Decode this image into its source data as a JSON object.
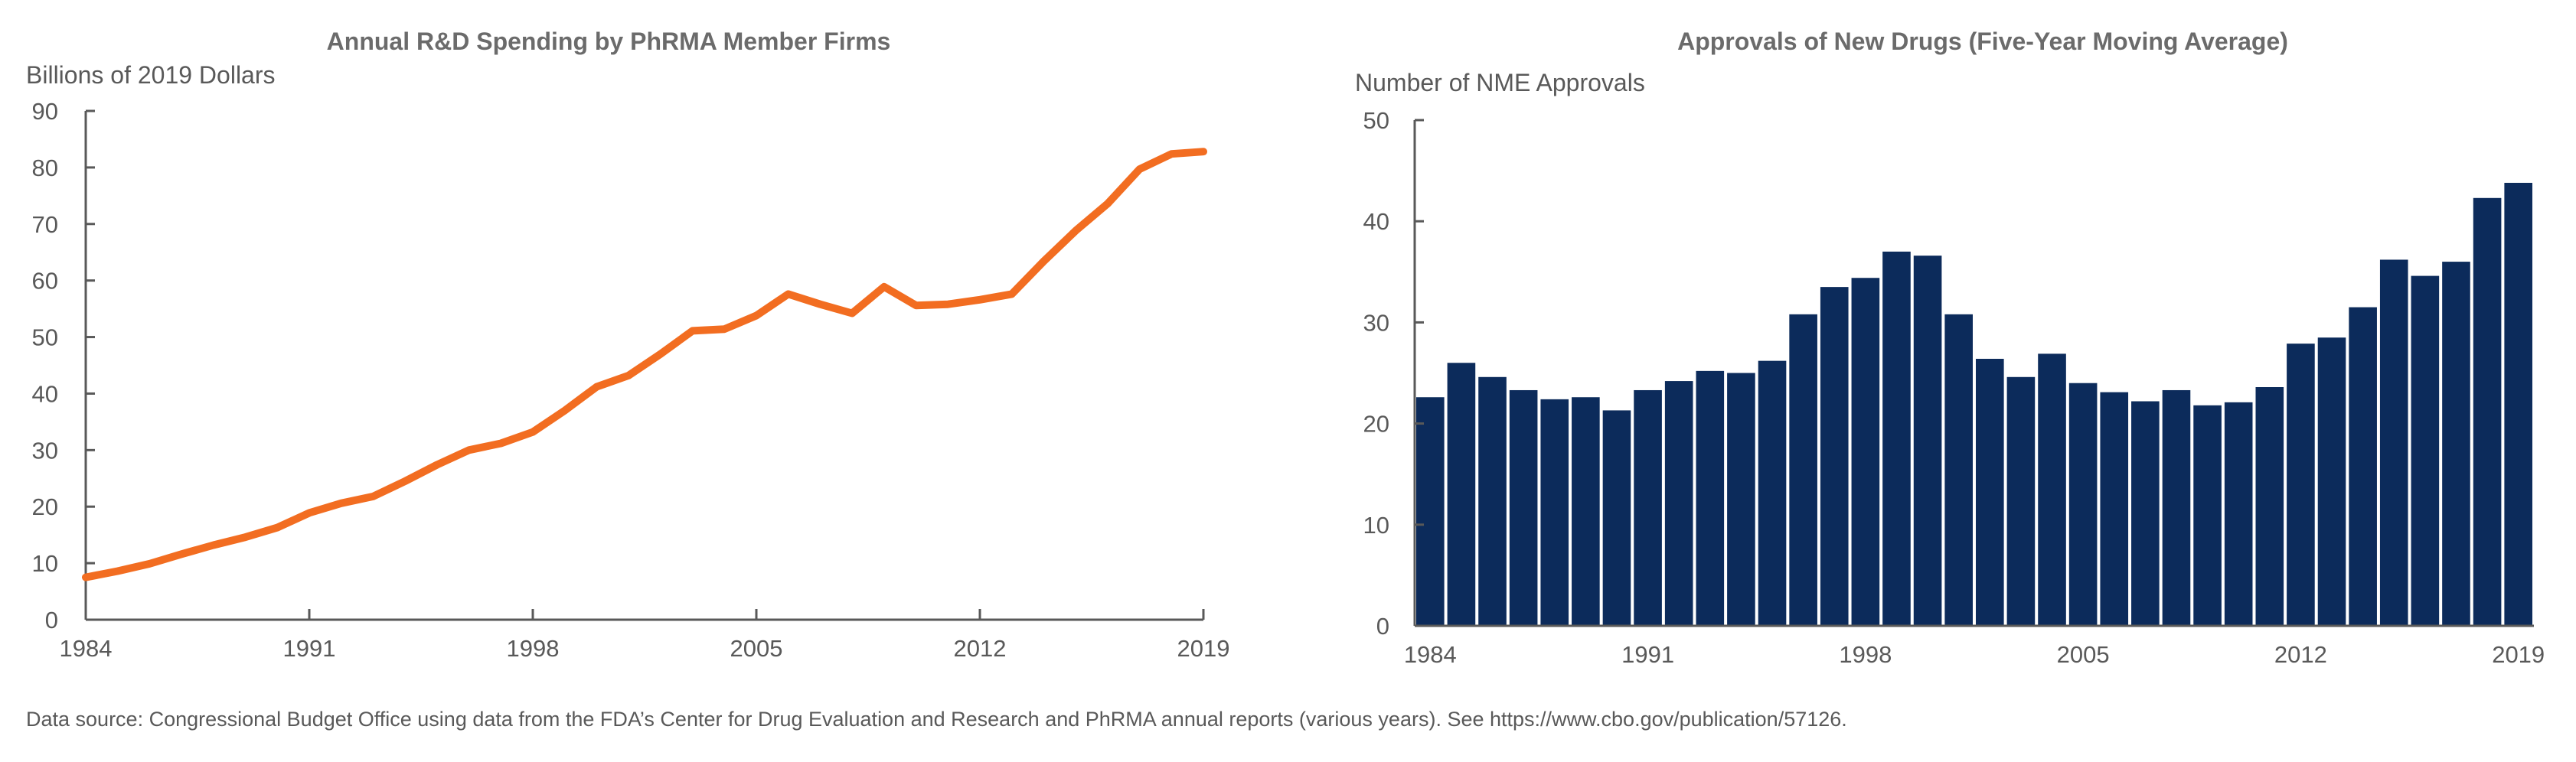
{
  "chart_data": [
    {
      "type": "line",
      "title": "Annual R&D Spending by PhRMA Member Firms",
      "ylabel": "Billions of 2019 Dollars",
      "xlabel": "",
      "ylim": [
        0,
        90
      ],
      "yticks": [
        0,
        10,
        20,
        30,
        40,
        50,
        60,
        70,
        80,
        90
      ],
      "xlim": [
        1984,
        2019
      ],
      "xticks": [
        1984,
        1991,
        1998,
        2005,
        2012,
        2019
      ],
      "color": "#f26d21",
      "x": [
        1984,
        1985,
        1986,
        1987,
        1988,
        1989,
        1990,
        1991,
        1992,
        1993,
        1994,
        1995,
        1996,
        1997,
        1998,
        1999,
        2000,
        2001,
        2002,
        2003,
        2004,
        2005,
        2006,
        2007,
        2008,
        2009,
        2010,
        2011,
        2012,
        2013,
        2014,
        2015,
        2016,
        2017,
        2018,
        2019
      ],
      "values": [
        7.5,
        8.6,
        9.9,
        11.6,
        13.2,
        14.6,
        16.3,
        18.9,
        20.6,
        21.8,
        24.5,
        27.4,
        30.0,
        31.2,
        33.2,
        37.0,
        41.2,
        43.2,
        47.0,
        51.1,
        51.4,
        53.8,
        57.6,
        55.8,
        54.2,
        58.9,
        55.6,
        55.8,
        56.6,
        57.6,
        63.4,
        68.8,
        73.6,
        79.7,
        82.4,
        82.8
      ]
    },
    {
      "type": "bar",
      "title": "Approvals of New Drugs (Five-Year Moving Average)",
      "ylabel": "Number of NME Approvals",
      "xlabel": "",
      "ylim": [
        0,
        50
      ],
      "yticks": [
        0,
        10,
        20,
        30,
        40,
        50
      ],
      "xticks": [
        1984,
        1991,
        1998,
        2005,
        2012,
        2019
      ],
      "color": "#0c2b5b",
      "categories": [
        1984,
        1985,
        1986,
        1987,
        1988,
        1989,
        1990,
        1991,
        1992,
        1993,
        1994,
        1995,
        1996,
        1997,
        1998,
        1999,
        2000,
        2001,
        2002,
        2003,
        2004,
        2005,
        2006,
        2007,
        2008,
        2009,
        2010,
        2011,
        2012,
        2013,
        2014,
        2015,
        2016,
        2017,
        2018,
        2019
      ],
      "values": [
        22.6,
        26.0,
        24.6,
        23.3,
        22.4,
        22.6,
        21.3,
        23.3,
        24.2,
        25.2,
        25.0,
        26.2,
        30.8,
        33.5,
        34.4,
        37.0,
        36.6,
        30.8,
        26.4,
        24.6,
        26.9,
        24.0,
        23.1,
        22.2,
        23.3,
        21.8,
        22.1,
        23.6,
        27.9,
        28.5,
        31.5,
        36.2,
        34.6,
        36.0,
        42.3,
        43.8
      ]
    }
  ],
  "footer": {
    "source": "Data source: Congressional Budget Office using data from the FDA’s Center for Drug Evaluation and Research and PhRMA annual reports (various years). See https://www.cbo.gov/publication/57126."
  }
}
